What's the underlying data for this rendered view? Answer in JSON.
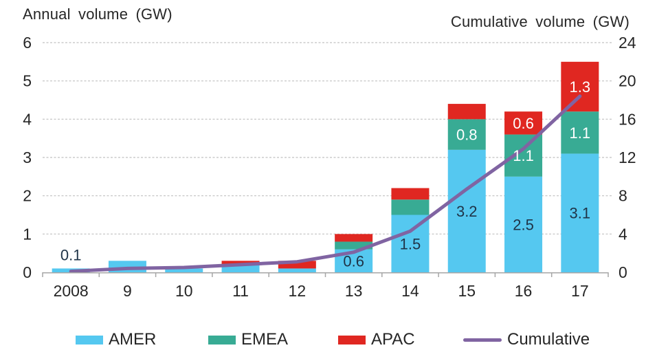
{
  "chart_data": {
    "type": "bar",
    "subtype": "stacked-bars-with-cumulative-line",
    "categories": [
      "2008",
      "9",
      "10",
      "11",
      "12",
      "13",
      "14",
      "15",
      "16",
      "17"
    ],
    "series": [
      {
        "name": "AMER",
        "color": "#55C8F0",
        "label_color": "#1F3347",
        "values": [
          0.1,
          0.3,
          0.1,
          0.2,
          0.1,
          0.6,
          1.5,
          3.2,
          2.5,
          3.1
        ],
        "labels": [
          "0.1",
          null,
          null,
          null,
          null,
          "0.6",
          "1.5",
          "3.2",
          "2.5",
          "3.1"
        ]
      },
      {
        "name": "EMEA",
        "color": "#38AB94",
        "label_color": "#FFFFFF",
        "values": [
          0,
          0,
          0,
          0,
          0,
          0.2,
          0.4,
          0.8,
          1.1,
          1.1
        ],
        "labels": [
          null,
          null,
          null,
          null,
          null,
          null,
          null,
          "0.8",
          "1.1",
          "1.1"
        ]
      },
      {
        "name": "APAC",
        "color": "#E02721",
        "label_color": "#FFFFFF",
        "values": [
          0,
          0,
          0,
          0.1,
          0.2,
          0.2,
          0.3,
          0.4,
          0.6,
          1.3
        ],
        "labels": [
          null,
          null,
          null,
          null,
          null,
          null,
          null,
          null,
          "0.6",
          "1.3"
        ]
      }
    ],
    "line": {
      "name": "Cumulative",
      "color": "#8064A2",
      "axis": "right",
      "values": [
        0.1,
        0.4,
        0.5,
        0.8,
        1.1,
        2.1,
        4.3,
        8.7,
        12.9,
        18.4
      ]
    },
    "left_axis": {
      "label": "Annual volume (GW)",
      "min": 0,
      "max": 6,
      "ticks": [
        "0",
        "1",
        "2",
        "3",
        "4",
        "5",
        "6"
      ]
    },
    "right_axis": {
      "label": "Cumulative volume (GW)",
      "min": 0,
      "max": 24,
      "ticks": [
        "0",
        "4",
        "8",
        "12",
        "16",
        "20",
        "24"
      ]
    },
    "grid": true,
    "legend_position": "bottom"
  },
  "legend": {
    "items": [
      {
        "label": "AMER",
        "color": "#55C8F0",
        "type": "box"
      },
      {
        "label": "EMEA",
        "color": "#38AB94",
        "type": "box"
      },
      {
        "label": "APAC",
        "color": "#E02721",
        "type": "box"
      },
      {
        "label": "Cumulative",
        "color": "#8064A2",
        "type": "line"
      }
    ]
  },
  "colors": {
    "grid": "#C0C0C0",
    "axis": "#A6A6A6",
    "text": "#262626",
    "background": "#FFFFFF"
  }
}
